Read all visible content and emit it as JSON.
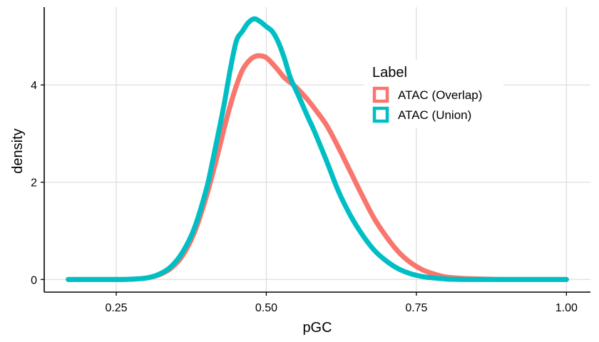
{
  "chart_data": {
    "type": "line",
    "xlabel": "pGC",
    "ylabel": "density",
    "xlim": [
      0.13,
      1.04
    ],
    "ylim": [
      -0.26,
      5.6
    ],
    "x_ticks": [
      0.25,
      0.5,
      0.75,
      1.0
    ],
    "x_tick_labels": [
      "0.25",
      "0.50",
      "0.75",
      "1.00"
    ],
    "y_ticks": [
      0,
      2,
      4
    ],
    "y_tick_labels": [
      "0",
      "2",
      "4"
    ],
    "grid": true,
    "legend": {
      "title": "Label",
      "position": "top-right"
    },
    "series": [
      {
        "name": "ATAC (Overlap)",
        "color": "#F8766D",
        "x": [
          0.17,
          0.2,
          0.25,
          0.28,
          0.3,
          0.32,
          0.34,
          0.36,
          0.38,
          0.4,
          0.42,
          0.43,
          0.44,
          0.45,
          0.46,
          0.47,
          0.48,
          0.49,
          0.5,
          0.51,
          0.52,
          0.53,
          0.54,
          0.55,
          0.56,
          0.57,
          0.58,
          0.6,
          0.62,
          0.64,
          0.66,
          0.68,
          0.7,
          0.72,
          0.74,
          0.76,
          0.78,
          0.8,
          0.83,
          0.86,
          0.9,
          0.95,
          1.0
        ],
        "y": [
          0.0,
          0.0,
          0.0,
          0.01,
          0.03,
          0.09,
          0.22,
          0.48,
          0.96,
          1.7,
          2.62,
          3.12,
          3.58,
          3.98,
          4.3,
          4.48,
          4.58,
          4.6,
          4.56,
          4.44,
          4.3,
          4.15,
          4.05,
          3.95,
          3.82,
          3.68,
          3.52,
          3.18,
          2.72,
          2.22,
          1.72,
          1.25,
          0.88,
          0.57,
          0.35,
          0.2,
          0.11,
          0.05,
          0.02,
          0.01,
          0.0,
          0.0,
          0.0
        ]
      },
      {
        "name": "ATAC (Union)",
        "color": "#00BFC4",
        "x": [
          0.17,
          0.2,
          0.25,
          0.28,
          0.3,
          0.32,
          0.34,
          0.36,
          0.38,
          0.4,
          0.41,
          0.42,
          0.43,
          0.44,
          0.45,
          0.46,
          0.47,
          0.48,
          0.49,
          0.5,
          0.51,
          0.52,
          0.53,
          0.54,
          0.55,
          0.56,
          0.57,
          0.58,
          0.6,
          0.62,
          0.64,
          0.66,
          0.68,
          0.7,
          0.72,
          0.74,
          0.76,
          0.78,
          0.8,
          0.83,
          0.86,
          0.9,
          0.95,
          1.0
        ],
        "y": [
          0.0,
          0.0,
          0.0,
          0.01,
          0.03,
          0.1,
          0.25,
          0.55,
          1.05,
          1.85,
          2.4,
          3.0,
          3.62,
          4.32,
          4.9,
          5.1,
          5.28,
          5.36,
          5.3,
          5.2,
          5.1,
          4.88,
          4.55,
          4.15,
          3.88,
          3.6,
          3.32,
          3.05,
          2.45,
          1.82,
          1.32,
          0.92,
          0.6,
          0.38,
          0.22,
          0.12,
          0.06,
          0.03,
          0.01,
          0.0,
          0.0,
          0.0,
          0.0,
          0.0
        ]
      }
    ]
  }
}
